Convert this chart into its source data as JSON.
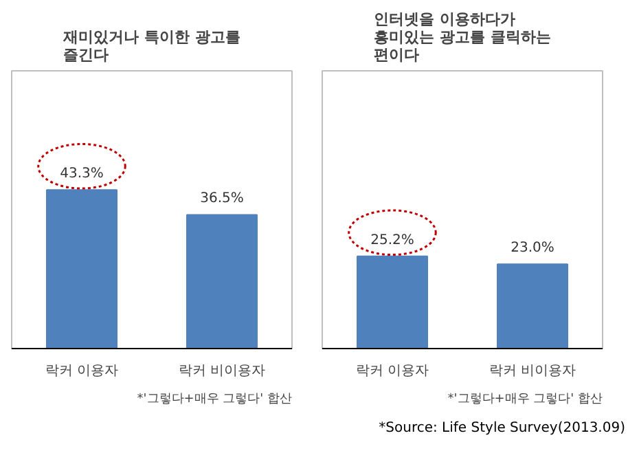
{
  "chart_data": [
    {
      "type": "bar",
      "title": "재미있거나 특이한 광고를\n즐긴다",
      "categories": [
        "락커 이용자",
        "락커 비이용자"
      ],
      "values": [
        43.3,
        36.5
      ],
      "value_labels": [
        "43.3%",
        "36.5%"
      ],
      "color": "#4f81bd",
      "annotations": [
        "*'그렇다+매우 그렇다' 합산"
      ],
      "grid": false,
      "legend": false
    },
    {
      "type": "bar",
      "title": "인터넷을 이용하다가\n흥미있는 광고를 클릭하는\n편이다",
      "categories": [
        "락커 이용자",
        "락커 비이용자"
      ],
      "values": [
        25.2,
        23.0
      ],
      "value_labels": [
        "25.2%",
        "23.0%"
      ],
      "color": "#4f81bd",
      "annotations": [
        "*'그렇다+매우 그렇다' 합산",
        "*Source: Life Style Survey(2013.09)"
      ],
      "grid": false,
      "legend": false
    }
  ]
}
